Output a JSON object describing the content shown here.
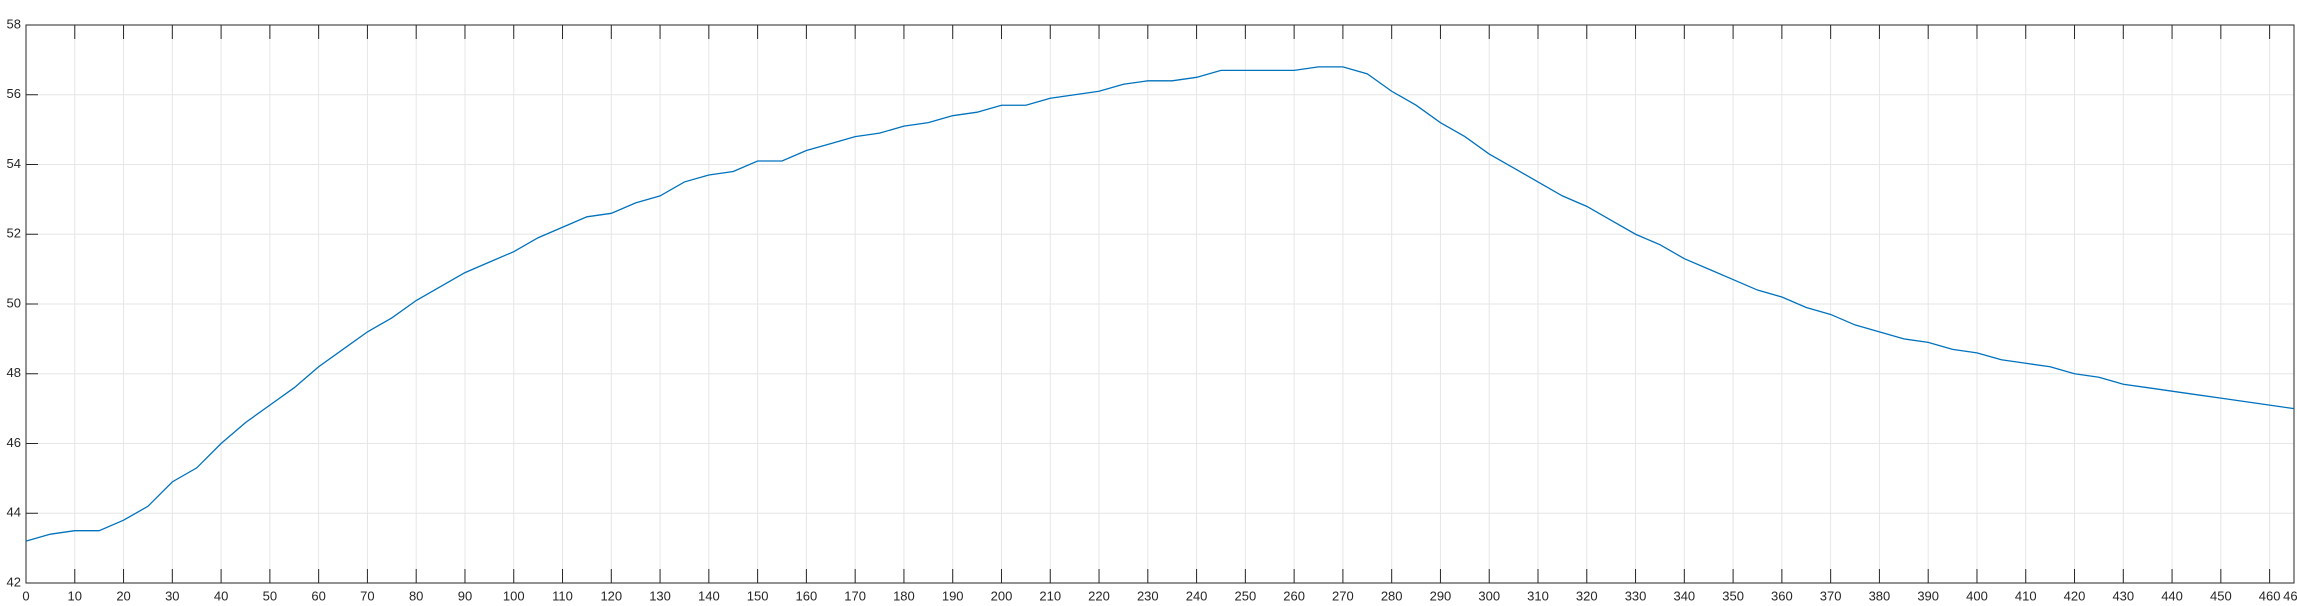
{
  "chart_data": {
    "type": "line",
    "x": [
      0,
      5,
      10,
      15,
      20,
      25,
      30,
      35,
      40,
      45,
      50,
      55,
      60,
      65,
      70,
      75,
      80,
      85,
      90,
      95,
      100,
      105,
      110,
      115,
      120,
      125,
      130,
      135,
      140,
      145,
      150,
      155,
      160,
      165,
      170,
      175,
      180,
      185,
      190,
      195,
      200,
      205,
      210,
      215,
      220,
      225,
      230,
      235,
      240,
      245,
      250,
      255,
      260,
      265,
      270,
      275,
      280,
      285,
      290,
      295,
      300,
      305,
      310,
      315,
      320,
      325,
      330,
      335,
      340,
      345,
      350,
      355,
      360,
      365,
      370,
      375,
      380,
      385,
      390,
      395,
      400,
      405,
      410,
      415,
      420,
      425,
      430,
      435,
      440,
      445,
      450,
      455,
      460,
      465
    ],
    "series": [
      {
        "color": "#0072bd",
        "values": [
          43.2,
          43.4,
          43.5,
          43.5,
          43.8,
          44.2,
          44.9,
          45.3,
          46.0,
          46.6,
          47.1,
          47.6,
          48.2,
          48.7,
          49.2,
          49.6,
          50.1,
          50.5,
          50.9,
          51.2,
          51.5,
          51.9,
          52.2,
          52.5,
          52.6,
          52.9,
          53.1,
          53.5,
          53.7,
          53.8,
          54.1,
          54.1,
          54.4,
          54.6,
          54.8,
          54.9,
          55.1,
          55.2,
          55.4,
          55.5,
          55.7,
          55.7,
          55.9,
          56.0,
          56.1,
          56.3,
          56.4,
          56.4,
          56.5,
          56.7,
          56.7,
          56.7,
          56.7,
          56.8,
          56.8,
          56.6,
          56.1,
          55.7,
          55.2,
          54.8,
          54.3,
          53.9,
          53.5,
          53.1,
          52.8,
          52.4,
          52.0,
          51.7,
          51.3,
          51.0,
          50.7,
          50.4,
          50.2,
          49.9,
          49.7,
          49.4,
          49.2,
          49.0,
          48.9,
          48.7,
          48.6,
          48.4,
          48.3,
          48.2,
          48.0,
          47.9,
          47.7,
          47.6,
          47.5,
          47.4,
          47.3,
          47.2,
          47.1,
          47.0
        ]
      }
    ],
    "xlim": [
      0,
      465
    ],
    "ylim": [
      42,
      58
    ],
    "xticks": [
      0,
      10,
      20,
      30,
      40,
      50,
      60,
      70,
      80,
      90,
      100,
      110,
      120,
      130,
      140,
      150,
      160,
      170,
      180,
      190,
      200,
      210,
      220,
      230,
      240,
      250,
      260,
      270,
      280,
      290,
      300,
      310,
      320,
      330,
      340,
      350,
      360,
      370,
      380,
      390,
      400,
      410,
      420,
      430,
      440,
      450,
      460,
      465
    ],
    "yticks": [
      42,
      44,
      46,
      48,
      50,
      52,
      54,
      56,
      58
    ],
    "grid": true
  }
}
